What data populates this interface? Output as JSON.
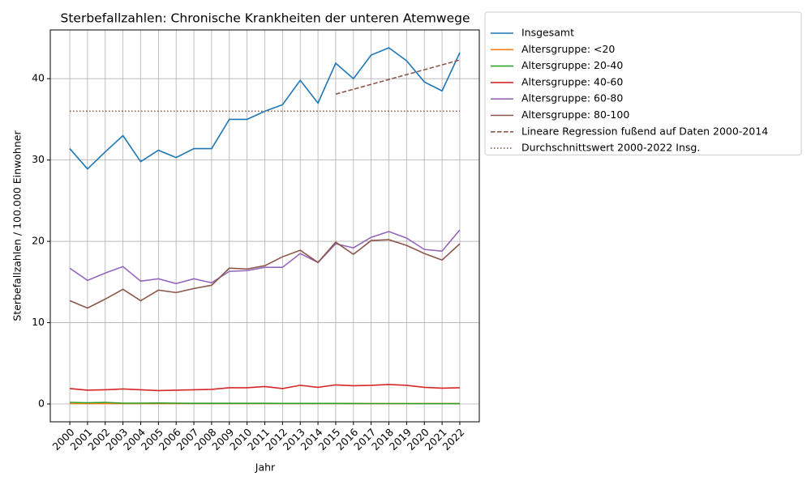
{
  "chart_data": {
    "type": "line",
    "title": "Sterbefallzahlen: Chronische Krankheiten der unteren Atemwege",
    "x_label": "Jahr",
    "y_label": "Sterbefallzahlen / 100.000 Einwohner",
    "x": [
      2000,
      2001,
      2002,
      2003,
      2004,
      2005,
      2006,
      2007,
      2008,
      2009,
      2010,
      2011,
      2012,
      2013,
      2014,
      2015,
      2016,
      2017,
      2018,
      2019,
      2020,
      2021,
      2022
    ],
    "xlim": [
      1998.9,
      2023.1
    ],
    "ylim": [
      -2.19,
      45.99
    ],
    "yticks": [
      0,
      10,
      20,
      30,
      40
    ],
    "grid": true,
    "legend": "outside-right",
    "series": [
      {
        "name": "Insgesamt",
        "color": "#1f77b4",
        "style": "solid",
        "values": [
          31.4,
          28.9,
          31.0,
          33.0,
          29.8,
          31.2,
          30.3,
          31.4,
          31.4,
          35.0,
          35.0,
          36.0,
          36.8,
          39.8,
          37.0,
          41.9,
          40.0,
          42.9,
          43.8,
          42.2,
          39.6,
          38.5,
          43.2
        ]
      },
      {
        "name": "Altersgruppe: <20",
        "color": "#ff7f0e",
        "style": "solid",
        "values": [
          0.05,
          0.05,
          0.05,
          0.05,
          0.05,
          0.05,
          0.05,
          0.05,
          0.05,
          0.05,
          0.05,
          0.05,
          0.05,
          0.05,
          0.05,
          0.05,
          0.05,
          0.05,
          0.05,
          0.05,
          0.05,
          0.05,
          0.05
        ]
      },
      {
        "name": "Altersgruppe: 20-40",
        "color": "#2ca02c",
        "style": "solid",
        "values": [
          0.2,
          0.15,
          0.2,
          0.1,
          0.1,
          0.12,
          0.1,
          0.08,
          0.08,
          0.08,
          0.08,
          0.08,
          0.07,
          0.07,
          0.07,
          0.07,
          0.06,
          0.05,
          0.05,
          0.05,
          0.04,
          0.04,
          0.04
        ]
      },
      {
        "name": "Altersgruppe: 40-60",
        "color": "#d62728",
        "style": "solid",
        "values": [
          1.9,
          1.7,
          1.75,
          1.85,
          1.75,
          1.65,
          1.7,
          1.75,
          1.8,
          2.0,
          2.0,
          2.15,
          1.9,
          2.3,
          2.05,
          2.35,
          2.25,
          2.3,
          2.4,
          2.3,
          2.05,
          1.95,
          2.0
        ]
      },
      {
        "name": "Altersgruppe: 60-80",
        "color": "#9467bd",
        "style": "solid",
        "values": [
          16.7,
          15.2,
          16.1,
          16.9,
          15.1,
          15.4,
          14.8,
          15.4,
          14.9,
          16.3,
          16.4,
          16.8,
          16.8,
          18.5,
          17.4,
          19.7,
          19.2,
          20.5,
          21.2,
          20.4,
          19.0,
          18.8,
          21.4
        ]
      },
      {
        "name": "Altersgruppe: 80-100",
        "color": "#8c564b",
        "style": "solid",
        "values": [
          12.7,
          11.8,
          12.9,
          14.1,
          12.7,
          14.0,
          13.7,
          14.2,
          14.6,
          16.7,
          16.6,
          17.0,
          18.1,
          18.9,
          17.4,
          19.9,
          18.4,
          20.1,
          20.2,
          19.5,
          18.5,
          17.7,
          19.7
        ]
      },
      {
        "name": "Lineare Regression fußend auf Daten 2000-2014",
        "color": "#8c564b",
        "style": "dashed",
        "values": [
          null,
          null,
          null,
          null,
          null,
          null,
          null,
          null,
          null,
          null,
          null,
          null,
          null,
          null,
          null,
          38.1,
          38.7,
          39.3,
          39.9,
          40.5,
          41.1,
          41.7,
          42.3
        ]
      },
      {
        "name": "Durchschnittswert 2000-2022 Insg.",
        "color": "#8c564b",
        "style": "dotted",
        "values": [
          36.0,
          36.0,
          36.0,
          36.0,
          36.0,
          36.0,
          36.0,
          36.0,
          36.0,
          36.0,
          36.0,
          36.0,
          36.0,
          36.0,
          36.0,
          36.0,
          36.0,
          36.0,
          36.0,
          36.0,
          36.0,
          36.0,
          36.0
        ]
      }
    ]
  }
}
